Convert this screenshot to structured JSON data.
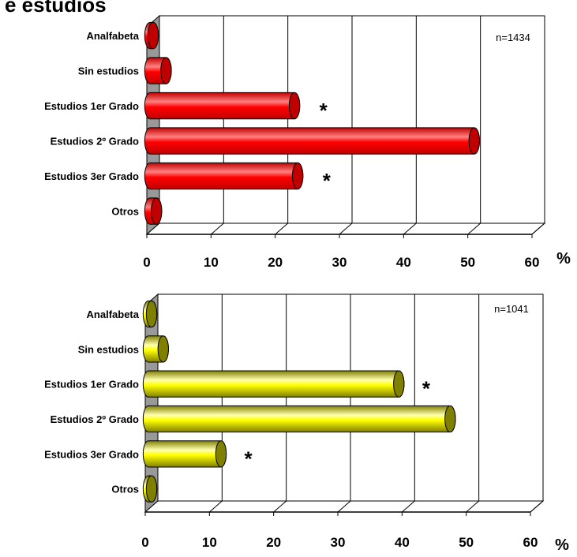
{
  "title": "e estudios",
  "chart_data": [
    {
      "type": "bar",
      "orientation": "horizontal",
      "categories": [
        "Analfabeta",
        "Sin estudios",
        "Estudios 1er Grado",
        "Estudios 2º Grado",
        "Estudios  3er Grado",
        "Otros"
      ],
      "values": [
        0.3,
        3,
        23,
        51,
        23.5,
        1.5
      ],
      "annotations": [
        "",
        "",
        "*",
        "",
        "*",
        ""
      ],
      "note": "n=1434",
      "xlim": [
        0,
        60
      ],
      "xticks": [
        "0",
        "10",
        "20",
        "30",
        "40",
        "50",
        "60"
      ],
      "unit": "%",
      "grid": true,
      "colors": {
        "face": "#ff0000",
        "end": "#c00000",
        "light": "#ff8080"
      }
    },
    {
      "type": "bar",
      "orientation": "horizontal",
      "categories": [
        "Analfabeta",
        "Sin estudios",
        "Estudios 1er Grado",
        "Estudios 2º Grado",
        "Estudios  3er Grado",
        "Otros"
      ],
      "values": [
        0.3,
        2.8,
        39.5,
        47.5,
        11.8,
        0.3
      ],
      "annotations": [
        "",
        "",
        "*",
        "",
        "*",
        ""
      ],
      "note": "n=1041",
      "xlim": [
        0,
        60
      ],
      "xticks": [
        "0",
        "10",
        "20",
        "30",
        "40",
        "50",
        "60"
      ],
      "unit": "%",
      "grid": true,
      "colors": {
        "face": "#ffff00",
        "end": "#808000",
        "light": "#ffffb0"
      }
    }
  ]
}
